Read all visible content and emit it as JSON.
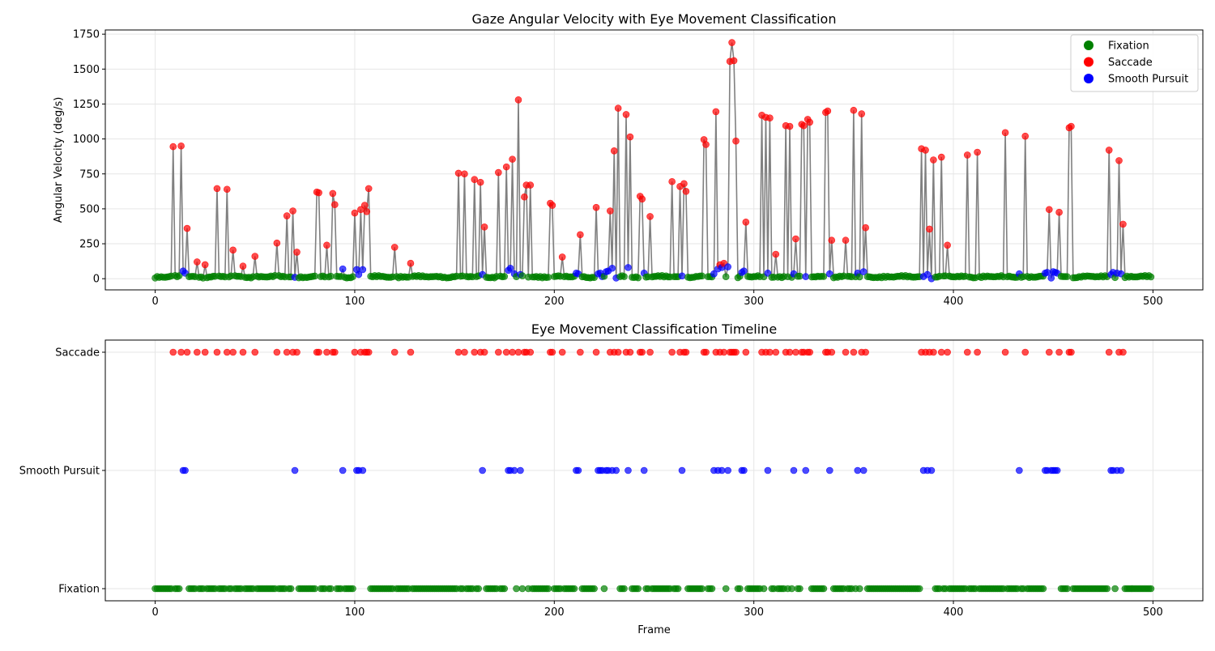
{
  "colors": {
    "Fixation": "#008000",
    "Saccade": "#ff0000",
    "Smooth Pursuit": "#0000ff",
    "trace": "#808080",
    "grid": "#e6e6e6"
  },
  "chart_data": [
    {
      "type": "line",
      "title": "Gaze Angular Velocity with Eye Movement Classification",
      "xlabel": "",
      "ylabel": "Angular Velocity (deg/s)",
      "xlim": [
        -25,
        525
      ],
      "ylim": [
        -80,
        1780
      ],
      "xticks": [
        0,
        100,
        200,
        300,
        400,
        500
      ],
      "yticks": [
        0,
        250,
        500,
        750,
        1000,
        1250,
        1500,
        1750
      ],
      "grid": true,
      "legend_position": "top-right",
      "legend": [
        "Fixation",
        "Saccade",
        "Smooth Pursuit"
      ],
      "series": [
        {
          "name": "Fixation",
          "marker": "circle"
        },
        {
          "name": "Saccade",
          "marker": "circle"
        },
        {
          "name": "Smooth Pursuit",
          "marker": "circle"
        }
      ],
      "saccade_points": [
        [
          9,
          945
        ],
        [
          13,
          950
        ],
        [
          16,
          360
        ],
        [
          21,
          120
        ],
        [
          25,
          100
        ],
        [
          31,
          645
        ],
        [
          36,
          640
        ],
        [
          39,
          205
        ],
        [
          44,
          90
        ],
        [
          50,
          160
        ],
        [
          61,
          255
        ],
        [
          66,
          450
        ],
        [
          69,
          485
        ],
        [
          71,
          190
        ],
        [
          81,
          620
        ],
        [
          82,
          615
        ],
        [
          86,
          240
        ],
        [
          89,
          610
        ],
        [
          90,
          530
        ],
        [
          100,
          470
        ],
        [
          103,
          495
        ],
        [
          105,
          525
        ],
        [
          106,
          480
        ],
        [
          107,
          645
        ],
        [
          120,
          225
        ],
        [
          128,
          110
        ],
        [
          152,
          755
        ],
        [
          155,
          750
        ],
        [
          160,
          710
        ],
        [
          163,
          690
        ],
        [
          165,
          370
        ],
        [
          172,
          760
        ],
        [
          176,
          800
        ],
        [
          179,
          855
        ],
        [
          182,
          1280
        ],
        [
          185,
          585
        ],
        [
          186,
          670
        ],
        [
          188,
          670
        ],
        [
          198,
          540
        ],
        [
          199,
          525
        ],
        [
          204,
          155
        ],
        [
          213,
          315
        ],
        [
          221,
          510
        ],
        [
          228,
          485
        ],
        [
          230,
          915
        ],
        [
          232,
          1220
        ],
        [
          236,
          1175
        ],
        [
          238,
          1015
        ],
        [
          243,
          590
        ],
        [
          244,
          570
        ],
        [
          248,
          445
        ],
        [
          259,
          695
        ],
        [
          263,
          660
        ],
        [
          265,
          680
        ],
        [
          266,
          625
        ],
        [
          275,
          995
        ],
        [
          276,
          960
        ],
        [
          281,
          1195
        ],
        [
          283,
          100
        ],
        [
          285,
          110
        ],
        [
          288,
          1555
        ],
        [
          289,
          1690
        ],
        [
          290,
          1560
        ],
        [
          291,
          985
        ],
        [
          296,
          405
        ],
        [
          311,
          175
        ],
        [
          304,
          1170
        ],
        [
          306,
          1155
        ],
        [
          308,
          1150
        ],
        [
          316,
          1095
        ],
        [
          318,
          1090
        ],
        [
          321,
          285
        ],
        [
          324,
          1105
        ],
        [
          325,
          1095
        ],
        [
          327,
          1140
        ],
        [
          328,
          1120
        ],
        [
          336,
          1190
        ],
        [
          337,
          1200
        ],
        [
          339,
          275
        ],
        [
          346,
          275
        ],
        [
          350,
          1205
        ],
        [
          354,
          1180
        ],
        [
          356,
          365
        ],
        [
          384,
          930
        ],
        [
          386,
          920
        ],
        [
          388,
          355
        ],
        [
          390,
          850
        ],
        [
          394,
          870
        ],
        [
          397,
          240
        ],
        [
          407,
          885
        ],
        [
          412,
          905
        ],
        [
          426,
          1045
        ],
        [
          436,
          1020
        ],
        [
          448,
          495
        ],
        [
          453,
          475
        ],
        [
          458,
          1080
        ],
        [
          459,
          1090
        ],
        [
          478,
          920
        ],
        [
          483,
          845
        ],
        [
          485,
          390
        ]
      ],
      "pursuit_points": [
        [
          14,
          55
        ],
        [
          15,
          40
        ],
        [
          70,
          10
        ],
        [
          94,
          70
        ],
        [
          101,
          65
        ],
        [
          102,
          30
        ],
        [
          104,
          65
        ],
        [
          164,
          30
        ],
        [
          177,
          60
        ],
        [
          178,
          75
        ],
        [
          180,
          35
        ],
        [
          182,
          45
        ],
        [
          183,
          30
        ],
        [
          185,
          50
        ],
        [
          211,
          40
        ],
        [
          212,
          35
        ],
        [
          222,
          35
        ],
        [
          223,
          40
        ],
        [
          224,
          15
        ],
        [
          226,
          50
        ],
        [
          227,
          55
        ],
        [
          229,
          75
        ],
        [
          231,
          5
        ],
        [
          237,
          80
        ],
        [
          245,
          40
        ],
        [
          264,
          20
        ],
        [
          280,
          35
        ],
        [
          282,
          70
        ],
        [
          284,
          80
        ],
        [
          287,
          85
        ],
        [
          294,
          45
        ],
        [
          295,
          55
        ],
        [
          307,
          40
        ],
        [
          320,
          35
        ],
        [
          326,
          15
        ],
        [
          338,
          35
        ],
        [
          352,
          40
        ],
        [
          354,
          45
        ],
        [
          355,
          50
        ],
        [
          385,
          15
        ],
        [
          387,
          30
        ],
        [
          389,
          0
        ],
        [
          433,
          35
        ],
        [
          446,
          40
        ],
        [
          447,
          45
        ],
        [
          449,
          5
        ],
        [
          450,
          50
        ],
        [
          451,
          45
        ],
        [
          452,
          40
        ],
        [
          479,
          30
        ],
        [
          480,
          45
        ],
        [
          482,
          40
        ],
        [
          484,
          35
        ]
      ]
    },
    {
      "type": "scatter",
      "title": "Eye Movement Classification Timeline",
      "xlabel": "Frame",
      "ylabel": "",
      "xlim": [
        -25,
        525
      ],
      "xticks": [
        0,
        100,
        200,
        300,
        400,
        500
      ],
      "categories": [
        "Fixation",
        "Smooth Pursuit",
        "Saccade"
      ],
      "grid": true,
      "frame_range": [
        0,
        499
      ]
    }
  ]
}
